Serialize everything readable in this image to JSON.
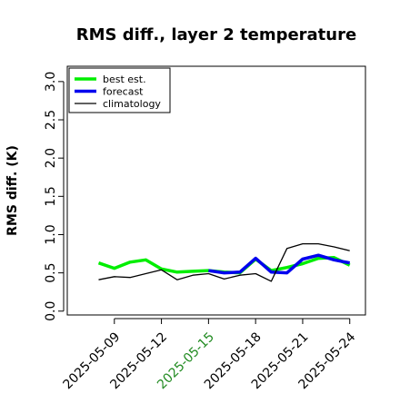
{
  "chart_data": {
    "type": "line",
    "title": "RMS diff., layer 2 temperature",
    "xlabel": "",
    "ylabel": "RMS diff. (K)",
    "x": [
      "2025-05-08",
      "2025-05-09",
      "2025-05-10",
      "2025-05-11",
      "2025-05-12",
      "2025-05-13",
      "2025-05-14",
      "2025-05-15",
      "2025-05-16",
      "2025-05-17",
      "2025-05-18",
      "2025-05-19",
      "2025-05-20",
      "2025-05-21",
      "2025-05-22",
      "2025-05-23",
      "2025-05-24"
    ],
    "xlim": [
      "2025-05-06",
      "2025-05-25"
    ],
    "ylim": [
      -0.05,
      3.2
    ],
    "xticks": [
      "2025-05-09",
      "2025-05-12",
      "2025-05-15",
      "2025-05-18",
      "2025-05-21",
      "2025-05-24"
    ],
    "xtick_colors": [
      "#000000",
      "#000000",
      "#228b22",
      "#000000",
      "#000000",
      "#000000"
    ],
    "yticks": [
      "0.0",
      "0.5",
      "1.0",
      "1.5",
      "2.0",
      "2.5",
      "3.0"
    ],
    "series": [
      {
        "name": "best est.",
        "color": "#00ee00",
        "values": [
          0.63,
          0.56,
          0.64,
          0.67,
          0.55,
          0.51,
          0.52,
          0.53,
          0.51,
          0.5,
          0.68,
          0.53,
          0.57,
          0.62,
          0.69,
          0.7,
          0.6
        ]
      },
      {
        "name": "forecast",
        "color": "#0000ee",
        "values": [
          null,
          null,
          null,
          null,
          null,
          null,
          null,
          0.53,
          0.5,
          0.51,
          0.69,
          0.51,
          0.5,
          0.68,
          0.73,
          0.67,
          0.63
        ]
      },
      {
        "name": "climatology",
        "color": "#000000",
        "values": [
          0.41,
          0.45,
          0.44,
          0.49,
          0.54,
          0.41,
          0.47,
          0.49,
          0.42,
          0.47,
          0.49,
          0.39,
          0.82,
          0.88,
          0.88,
          0.84,
          0.79
        ]
      }
    ],
    "legend": {
      "placement": "top-left",
      "entries": [
        "best est.",
        "forecast",
        "climatology"
      ]
    },
    "grid": false
  }
}
